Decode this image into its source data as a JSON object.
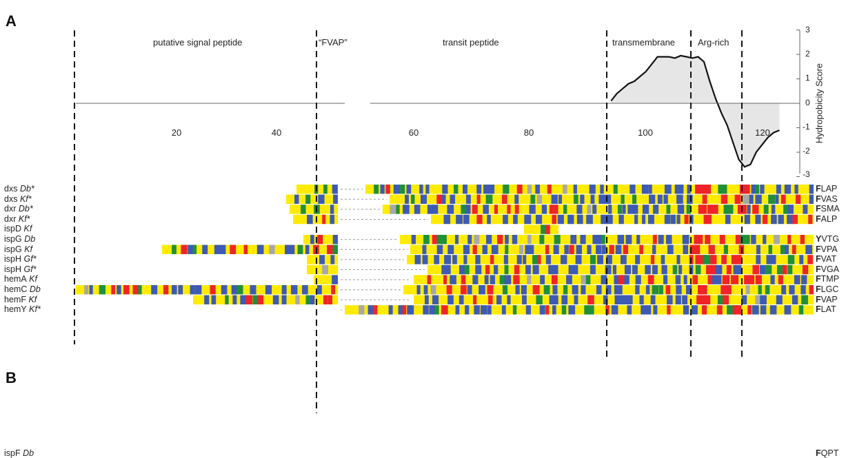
{
  "panels": {
    "a_label": "A",
    "b_label": "B"
  },
  "regions": {
    "signal": "putative signal peptide",
    "fvap": "“FVAP”",
    "transit": "transit peptide",
    "tm": "transmembrane",
    "arg": "Arg-rich"
  },
  "x_ticks": [
    "20",
    "40",
    "60",
    "80",
    "100",
    "120"
  ],
  "y_ticks": [
    "3",
    "2",
    "1",
    "0",
    "-1",
    "-2",
    "-3"
  ],
  "y_axis_label": "Hydropobicity Score",
  "chart_data": {
    "type": "area",
    "x": [
      94,
      95,
      96,
      97,
      98,
      99,
      100,
      101,
      102,
      103,
      104,
      105,
      106,
      107,
      108,
      109,
      110,
      111,
      112,
      113,
      114,
      115,
      116,
      117,
      118,
      119,
      120,
      121,
      122,
      123
    ],
    "y": [
      0.1,
      0.4,
      0.6,
      0.8,
      0.9,
      1.1,
      1.3,
      1.6,
      1.9,
      1.9,
      1.9,
      1.85,
      1.95,
      1.9,
      1.85,
      1.9,
      1.7,
      0.9,
      0.2,
      -0.4,
      -0.9,
      -1.6,
      -2.3,
      -2.6,
      -2.5,
      -2.0,
      -1.7,
      -1.4,
      -1.2,
      -1.1
    ],
    "xlim": [
      0,
      135
    ],
    "ylim": [
      -3,
      3
    ],
    "xlabel": "",
    "ylabel": "Hydropobicity Score"
  },
  "colors": {
    "yellow": "#FFEB00",
    "blue": "#3D5AB5",
    "red": "#EE2428",
    "green": "#1F8F3C",
    "gray": "#A8A8A8",
    "fill": "#E6E6E6"
  },
  "genes": [
    {
      "name": "dxs",
      "species": "Db*",
      "motif_bold": "F",
      "motif_rest": "LAP"
    },
    {
      "name": "dxs",
      "species": "Kf*",
      "motif_bold": "F",
      "motif_rest": "VAS"
    },
    {
      "name": "dxr",
      "species": "Db*",
      "motif_bold": "F",
      "motif_rest": "SMA"
    },
    {
      "name": "dxr",
      "species": "Kf*",
      "motif_bold": "F",
      "motif_rest": "ALP"
    },
    {
      "name": "ispD",
      "species": "Kf",
      "motif_bold": "",
      "motif_rest": ""
    },
    {
      "name": "ispG",
      "species": "Db",
      "motif_bold": "Y",
      "motif_rest": "VTG"
    },
    {
      "name": "ispG",
      "species": "Kf",
      "motif_bold": "F",
      "motif_rest": "VPA"
    },
    {
      "name": "ispH",
      "species": "Gf*",
      "motif_bold": "F",
      "motif_rest": "VAT"
    },
    {
      "name": "ispH",
      "species": "Gf*",
      "motif_bold": "F",
      "motif_rest": "VGA"
    },
    {
      "name": "hemA",
      "species": "Kf",
      "motif_bold": "F",
      "motif_rest": "TMP"
    },
    {
      "name": "hemC",
      "species": "Db",
      "motif_bold": "F",
      "motif_rest": "LGC"
    },
    {
      "name": "hemF",
      "species": "Kf",
      "motif_bold": "F",
      "motif_rest": "VAP"
    },
    {
      "name": "hemY",
      "species": "Kf*",
      "motif_bold": "F",
      "motif_rest": "LAT"
    }
  ],
  "gene_b": {
    "name": "ispF",
    "species": "Db",
    "motif_bold": "F",
    "motif_rest": "QPT"
  }
}
